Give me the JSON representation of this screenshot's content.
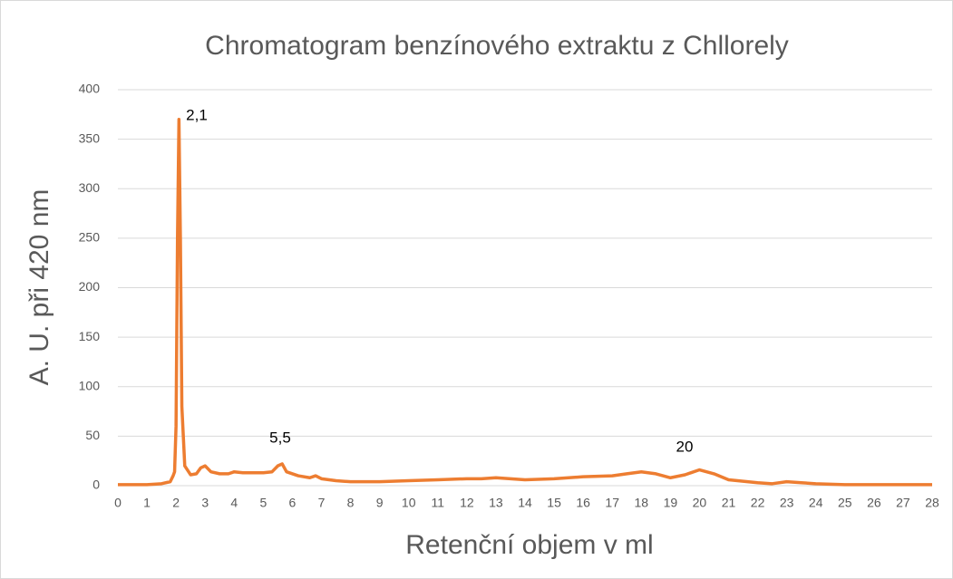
{
  "chart_data": {
    "type": "line",
    "title": "Chromatogram benzínového extraktu z Chllorely",
    "xlabel": "Retenční objem v ml",
    "ylabel": "A. U. při 420 nm",
    "x": [
      0,
      1,
      1.5,
      1.8,
      1.9,
      1.95,
      2.0,
      2.05,
      2.1,
      2.15,
      2.2,
      2.3,
      2.5,
      2.7,
      2.85,
      3.0,
      3.2,
      3.5,
      3.8,
      4.0,
      4.3,
      4.6,
      5.0,
      5.3,
      5.5,
      5.65,
      5.8,
      6.2,
      6.6,
      6.8,
      7.0,
      7.5,
      8,
      9,
      10,
      11,
      12,
      12.5,
      13,
      13.5,
      14,
      15,
      16,
      17,
      17.5,
      18,
      18.5,
      19,
      19.5,
      20,
      20.5,
      21,
      22,
      22.5,
      23,
      23.5,
      24,
      25,
      26,
      27,
      28
    ],
    "series": [
      {
        "name": "A. U.",
        "color": "#ed7d31",
        "values": [
          1,
          1,
          2,
          4,
          10,
          14,
          60,
          250,
          370,
          250,
          80,
          20,
          11,
          12,
          18,
          20,
          14,
          12,
          12,
          14,
          13,
          13,
          13,
          14,
          20,
          22,
          14,
          10,
          8,
          10,
          7,
          5,
          4,
          4,
          5,
          6,
          7,
          7,
          8,
          7,
          6,
          7,
          9,
          10,
          12,
          14,
          12,
          8,
          11,
          16,
          12,
          6,
          3,
          2,
          4,
          3,
          2,
          1,
          1,
          1,
          1
        ]
      }
    ],
    "annotations": [
      "2,1",
      "5,5",
      "20"
    ],
    "xlim": [
      0,
      28
    ],
    "xticks": [
      0,
      1,
      2,
      3,
      4,
      5,
      6,
      7,
      8,
      9,
      10,
      11,
      12,
      13,
      14,
      15,
      16,
      17,
      18,
      19,
      20,
      21,
      22,
      23,
      24,
      25,
      26,
      27,
      28
    ],
    "ylim": [
      0,
      400
    ],
    "yticks": [
      0,
      50,
      100,
      150,
      200,
      250,
      300,
      350,
      400
    ],
    "grid": true
  }
}
